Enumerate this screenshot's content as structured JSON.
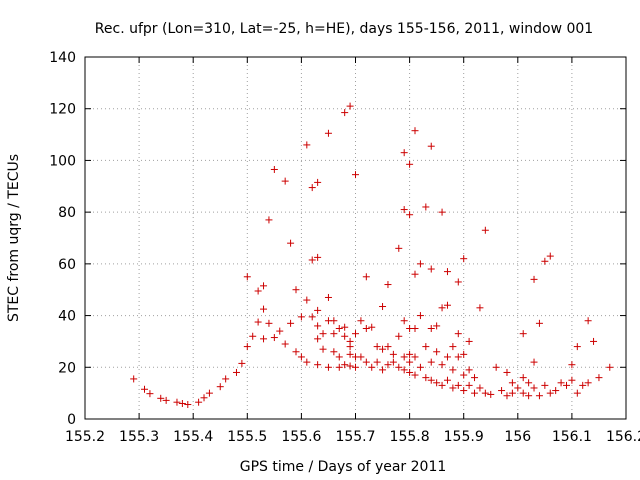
{
  "chart_data": {
    "type": "scatter",
    "title": "Rec. ufpr (Lon=310, Lat=-25, h=HE), days 155-156, 2011, window 001",
    "xlabel": "GPS time / Days of year 2011",
    "ylabel": "STEC from uqrg / TECUs",
    "xlim": [
      155.2,
      156.2
    ],
    "ylim": [
      0,
      140
    ],
    "x_ticks": [
      "155.2",
      "155.3",
      "155.4",
      "155.5",
      "155.6",
      "155.7",
      "155.8",
      "155.9",
      "156",
      "156.1",
      "156.2"
    ],
    "y_ticks": [
      "0",
      "20",
      "40",
      "60",
      "80",
      "100",
      "120",
      "140"
    ],
    "grid": true,
    "marker": "+",
    "color": "#cc0000",
    "series": [
      {
        "name": "STEC",
        "points": [
          [
            155.29,
            15.5
          ],
          [
            155.31,
            11.5
          ],
          [
            155.32,
            9.8
          ],
          [
            155.34,
            8.0
          ],
          [
            155.35,
            7.2
          ],
          [
            155.37,
            6.5
          ],
          [
            155.38,
            6.0
          ],
          [
            155.39,
            5.6
          ],
          [
            155.41,
            6.5
          ],
          [
            155.42,
            8.2
          ],
          [
            155.43,
            10.0
          ],
          [
            155.45,
            12.5
          ],
          [
            155.46,
            15.5
          ],
          [
            155.48,
            18.0
          ],
          [
            155.49,
            21.5
          ],
          [
            155.5,
            55.0
          ],
          [
            155.5,
            28.0
          ],
          [
            155.51,
            32.0
          ],
          [
            155.52,
            49.5
          ],
          [
            155.52,
            37.5
          ],
          [
            155.53,
            51.5
          ],
          [
            155.53,
            42.5
          ],
          [
            155.53,
            31.0
          ],
          [
            155.54,
            77.0
          ],
          [
            155.54,
            37.0
          ],
          [
            155.55,
            31.5
          ],
          [
            155.55,
            96.5
          ],
          [
            155.56,
            34.0
          ],
          [
            155.57,
            92.0
          ],
          [
            155.57,
            29.0
          ],
          [
            155.58,
            68.0
          ],
          [
            155.58,
            37.0
          ],
          [
            155.59,
            26.0
          ],
          [
            155.59,
            50.0
          ],
          [
            155.6,
            39.5
          ],
          [
            155.6,
            24.0
          ],
          [
            155.61,
            106.0
          ],
          [
            155.61,
            46.0
          ],
          [
            155.61,
            22.0
          ],
          [
            155.62,
            39.5
          ],
          [
            155.62,
            61.5
          ],
          [
            155.62,
            89.5
          ],
          [
            155.63,
            91.5
          ],
          [
            155.63,
            62.5
          ],
          [
            155.63,
            42.0
          ],
          [
            155.63,
            36.0
          ],
          [
            155.63,
            31.0
          ],
          [
            155.63,
            21.0
          ],
          [
            155.64,
            33.0
          ],
          [
            155.64,
            27.0
          ],
          [
            155.65,
            110.5
          ],
          [
            155.65,
            47.0
          ],
          [
            155.65,
            38.0
          ],
          [
            155.65,
            20.0
          ],
          [
            155.66,
            33.0
          ],
          [
            155.66,
            26.0
          ],
          [
            155.66,
            38.0
          ],
          [
            155.67,
            24.0
          ],
          [
            155.67,
            20.0
          ],
          [
            155.67,
            35.0
          ],
          [
            155.68,
            118.5
          ],
          [
            155.68,
            35.5
          ],
          [
            155.68,
            32.0
          ],
          [
            155.68,
            21.0
          ],
          [
            155.69,
            121.0
          ],
          [
            155.69,
            30.0
          ],
          [
            155.69,
            28.0
          ],
          [
            155.69,
            25.0
          ],
          [
            155.69,
            20.5
          ],
          [
            155.7,
            94.5
          ],
          [
            155.7,
            33.0
          ],
          [
            155.7,
            24.0
          ],
          [
            155.7,
            20.0
          ],
          [
            155.71,
            38.0
          ],
          [
            155.71,
            24.0
          ],
          [
            155.72,
            55.0
          ],
          [
            155.72,
            35.0
          ],
          [
            155.72,
            22.0
          ],
          [
            155.73,
            35.5
          ],
          [
            155.73,
            20.0
          ],
          [
            155.74,
            28.0
          ],
          [
            155.74,
            22.0
          ],
          [
            155.75,
            43.5
          ],
          [
            155.75,
            27.0
          ],
          [
            155.75,
            19.0
          ],
          [
            155.76,
            52.0
          ],
          [
            155.76,
            28.0
          ],
          [
            155.76,
            21.0
          ],
          [
            155.77,
            25.0
          ],
          [
            155.77,
            22.0
          ],
          [
            155.78,
            66.0
          ],
          [
            155.78,
            32.0
          ],
          [
            155.78,
            20.0
          ],
          [
            155.79,
            103.0
          ],
          [
            155.79,
            81.0
          ],
          [
            155.79,
            38.0
          ],
          [
            155.79,
            24.0
          ],
          [
            155.79,
            19.0
          ],
          [
            155.8,
            98.5
          ],
          [
            155.8,
            79.0
          ],
          [
            155.8,
            35.0
          ],
          [
            155.8,
            25.0
          ],
          [
            155.8,
            22.0
          ],
          [
            155.8,
            18.0
          ],
          [
            155.81,
            111.5
          ],
          [
            155.81,
            56.0
          ],
          [
            155.81,
            35.0
          ],
          [
            155.81,
            24.0
          ],
          [
            155.81,
            17.0
          ],
          [
            155.82,
            60.0
          ],
          [
            155.82,
            40.0
          ],
          [
            155.82,
            20.0
          ],
          [
            155.83,
            82.0
          ],
          [
            155.83,
            28.0
          ],
          [
            155.83,
            16.0
          ],
          [
            155.84,
            105.5
          ],
          [
            155.84,
            58.0
          ],
          [
            155.84,
            35.0
          ],
          [
            155.84,
            22.0
          ],
          [
            155.84,
            15.0
          ],
          [
            155.85,
            36.0
          ],
          [
            155.85,
            26.0
          ],
          [
            155.85,
            14.0
          ],
          [
            155.86,
            80.0
          ],
          [
            155.86,
            43.0
          ],
          [
            155.86,
            21.0
          ],
          [
            155.86,
            13.0
          ],
          [
            155.87,
            57.0
          ],
          [
            155.87,
            44.0
          ],
          [
            155.87,
            24.0
          ],
          [
            155.87,
            15.0
          ],
          [
            155.88,
            28.0
          ],
          [
            155.88,
            19.0
          ],
          [
            155.88,
            12.0
          ],
          [
            155.89,
            53.0
          ],
          [
            155.89,
            33.0
          ],
          [
            155.89,
            24.0
          ],
          [
            155.89,
            13.0
          ],
          [
            155.9,
            62.0
          ],
          [
            155.9,
            25.0
          ],
          [
            155.9,
            17.0
          ],
          [
            155.9,
            11.0
          ],
          [
            155.91,
            30.0
          ],
          [
            155.91,
            19.0
          ],
          [
            155.91,
            13.0
          ],
          [
            155.92,
            16.0
          ],
          [
            155.92,
            10.0
          ],
          [
            155.93,
            43.0
          ],
          [
            155.93,
            12.0
          ],
          [
            155.94,
            73.0
          ],
          [
            155.94,
            10.0
          ],
          [
            155.95,
            9.5
          ],
          [
            155.96,
            20.0
          ],
          [
            155.97,
            11.0
          ],
          [
            155.98,
            18.0
          ],
          [
            155.98,
            9.0
          ],
          [
            155.99,
            14.0
          ],
          [
            155.99,
            10.0
          ],
          [
            156.0,
            12.0
          ],
          [
            156.01,
            33.0
          ],
          [
            156.01,
            16.0
          ],
          [
            156.01,
            10.0
          ],
          [
            156.02,
            14.0
          ],
          [
            156.02,
            9.0
          ],
          [
            156.03,
            54.0
          ],
          [
            156.03,
            22.0
          ],
          [
            156.03,
            12.0
          ],
          [
            156.04,
            37.0
          ],
          [
            156.04,
            9.0
          ],
          [
            156.05,
            61.0
          ],
          [
            156.05,
            13.0
          ],
          [
            156.06,
            63.0
          ],
          [
            156.06,
            10.0
          ],
          [
            156.07,
            11.0
          ],
          [
            156.08,
            14.0
          ],
          [
            156.09,
            13.0
          ],
          [
            156.1,
            21.0
          ],
          [
            156.1,
            15.0
          ],
          [
            156.11,
            28.0
          ],
          [
            156.11,
            10.0
          ],
          [
            156.12,
            13.0
          ],
          [
            156.13,
            38.0
          ],
          [
            156.13,
            14.0
          ],
          [
            156.14,
            30.0
          ],
          [
            156.15,
            16.0
          ],
          [
            156.17,
            20.0
          ]
        ]
      }
    ]
  }
}
